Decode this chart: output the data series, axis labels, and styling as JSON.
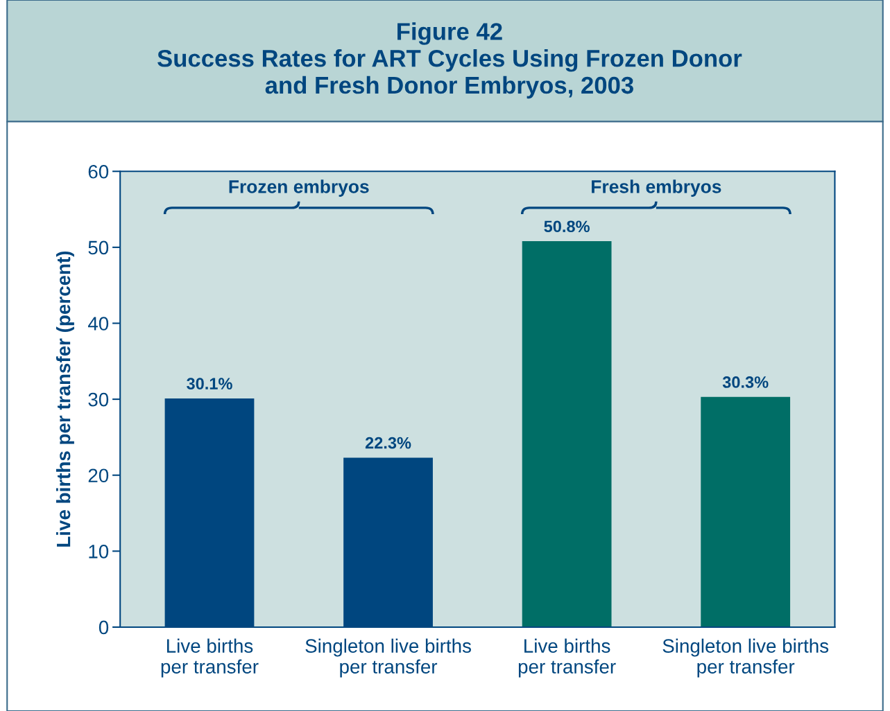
{
  "chart_data": {
    "type": "bar",
    "title": "Figure 42\nSuccess Rates for ART Cycles Using Frozen Donor\nand Fresh Donor Embryos, 2003",
    "ylabel": "Live births per transfer (percent)",
    "categories": [
      "Live births\nper transfer",
      "Singleton live births\nper transfer",
      "Live births\nper transfer",
      "Singleton live births\nper transfer"
    ],
    "values": [
      30.1,
      22.3,
      50.8,
      30.3
    ],
    "colors": [
      "#00467f",
      "#00467f",
      "#006e66",
      "#006e66"
    ],
    "value_labels": [
      "30.1%",
      "22.3%",
      "50.8%",
      "30.3%"
    ],
    "annotations": [
      "Frozen embryos",
      "Fresh embryos"
    ],
    "ylim": [
      0,
      60
    ],
    "yticks": [
      0,
      10,
      20,
      30,
      40,
      50,
      60
    ],
    "grid": false,
    "legend": false
  }
}
